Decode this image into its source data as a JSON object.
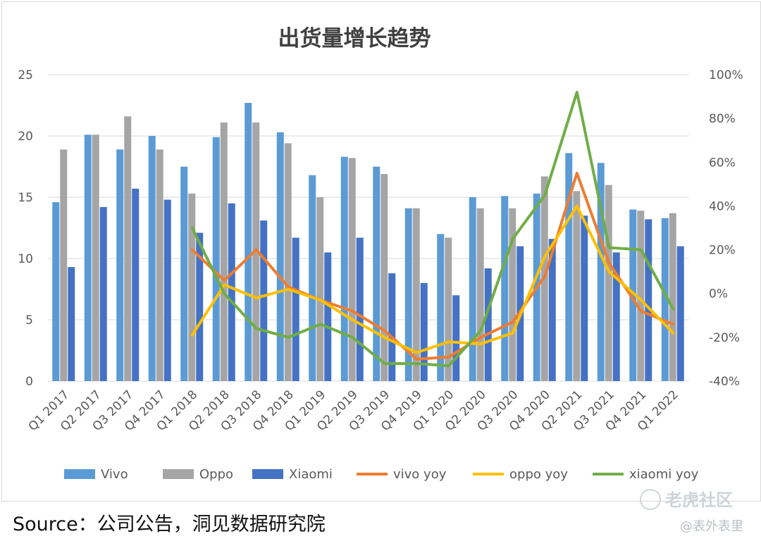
{
  "chart_data": {
    "type": "bar",
    "title": "出货量增长趋势",
    "categories": [
      "Q1 2017",
      "Q2 2017",
      "Q3 2017",
      "Q4 2017",
      "Q1 2018",
      "Q2 2018",
      "Q3 2018",
      "Q4 2018",
      "Q1 2019",
      "Q2 2019",
      "Q3 2019",
      "Q4 2019",
      "Q1 2020",
      "Q2 2020",
      "Q3 2020",
      "Q4 2020",
      "Q2 2021",
      "Q3 2021",
      "Q4 2021",
      "Q1 2022"
    ],
    "left_axis": {
      "min": 0,
      "max": 25,
      "ticks": [
        "0",
        "5",
        "10",
        "15",
        "20",
        "25"
      ]
    },
    "right_axis": {
      "min": -40,
      "max": 100,
      "ticks": [
        "-40%",
        "-20%",
        "0%",
        "20%",
        "40%",
        "60%",
        "80%",
        "100%"
      ]
    },
    "grid": true,
    "legend_position": "bottom",
    "bar_series": [
      {
        "name": "Vivo",
        "color": "#5b9bd5",
        "values": [
          14.6,
          20.1,
          18.9,
          20.0,
          17.5,
          19.9,
          22.7,
          20.3,
          16.8,
          18.3,
          17.5,
          14.1,
          12.0,
          15.0,
          15.1,
          15.3,
          18.6,
          17.8,
          14.0,
          13.3
        ]
      },
      {
        "name": "Oppo",
        "color": "#a5a5a5",
        "values": [
          18.9,
          20.1,
          21.6,
          18.9,
          15.3,
          21.1,
          21.1,
          19.4,
          15.0,
          18.2,
          16.9,
          14.1,
          11.7,
          14.1,
          14.1,
          16.7,
          15.5,
          16.0,
          13.9,
          13.7
        ]
      },
      {
        "name": "Xiaomi",
        "color": "#4472c4",
        "values": [
          9.3,
          14.2,
          15.7,
          14.8,
          12.1,
          14.5,
          13.1,
          11.7,
          10.5,
          11.7,
          8.8,
          8.0,
          7.0,
          9.2,
          11.0,
          11.6,
          13.5,
          10.5,
          13.2,
          11.0
        ]
      }
    ],
    "line_series": [
      {
        "name": "vivo yoy",
        "color": "#ed7d31",
        "start_index": 4,
        "values": [
          20,
          6,
          20,
          3,
          -3,
          -8,
          -17,
          -30,
          -29,
          -20,
          -13,
          8,
          55,
          14,
          -8,
          -14
        ]
      },
      {
        "name": "oppo yoy",
        "color": "#ffc000",
        "start_index": 4,
        "values": [
          -19,
          4,
          -2,
          2,
          -3,
          -12,
          -20,
          -27,
          -22,
          -23,
          -18,
          17,
          40,
          10,
          -3,
          -18
        ]
      },
      {
        "name": "xiaomi yoy",
        "color": "#70ad47",
        "start_index": 4,
        "values": [
          30,
          0,
          -16,
          -20,
          -14,
          -20,
          -32,
          -32,
          -33,
          -17,
          25,
          45,
          92,
          21,
          20,
          -7
        ]
      }
    ]
  },
  "footer": {
    "source": "Source：公司公告，洞见数据研究院",
    "watermark": "老虎社区",
    "watermark_sub": "@表外表里"
  }
}
